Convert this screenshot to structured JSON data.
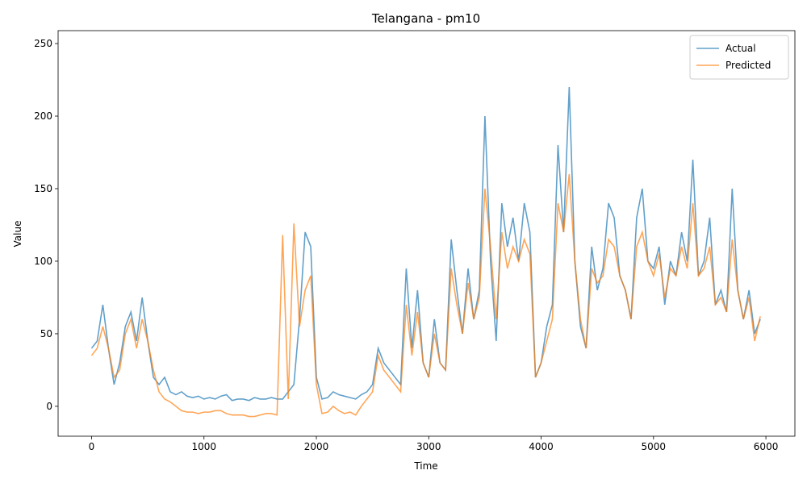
{
  "chart_data": {
    "type": "line",
    "title": "Telangana - pm10",
    "x_label": "Time",
    "y_label": "Value",
    "x": [
      0,
      50,
      100,
      150,
      200,
      250,
      300,
      350,
      400,
      450,
      500,
      550,
      600,
      650,
      700,
      750,
      800,
      850,
      900,
      950,
      1000,
      1050,
      1100,
      1150,
      1200,
      1250,
      1300,
      1350,
      1400,
      1450,
      1500,
      1550,
      1600,
      1650,
      1700,
      1750,
      1800,
      1850,
      1900,
      1950,
      2000,
      2050,
      2100,
      2150,
      2200,
      2250,
      2300,
      2350,
      2400,
      2450,
      2500,
      2550,
      2600,
      2650,
      2700,
      2750,
      2800,
      2850,
      2900,
      2950,
      3000,
      3050,
      3100,
      3150,
      3200,
      3250,
      3300,
      3350,
      3400,
      3450,
      3500,
      3550,
      3600,
      3650,
      3700,
      3750,
      3800,
      3850,
      3900,
      3950,
      4000,
      4050,
      4100,
      4150,
      4200,
      4250,
      4300,
      4350,
      4400,
      4450,
      4500,
      4550,
      4600,
      4650,
      4700,
      4750,
      4800,
      4850,
      4900,
      4950,
      5000,
      5050,
      5100,
      5150,
      5200,
      5250,
      5300,
      5350,
      5400,
      5450,
      5500,
      5550,
      5600,
      5650,
      5700,
      5750,
      5800,
      5850,
      5900,
      5950
    ],
    "series": [
      {
        "name": "Actual",
        "color": "#1f77b4",
        "values": [
          40,
          45,
          70,
          40,
          15,
          30,
          55,
          65,
          45,
          75,
          45,
          20,
          15,
          20,
          10,
          8,
          10,
          7,
          6,
          7,
          5,
          6,
          5,
          7,
          8,
          4,
          5,
          5,
          4,
          6,
          5,
          5,
          6,
          5,
          5,
          10,
          15,
          60,
          120,
          110,
          20,
          5,
          6,
          10,
          8,
          7,
          6,
          5,
          8,
          10,
          15,
          40,
          30,
          25,
          20,
          15,
          95,
          40,
          80,
          30,
          20,
          60,
          30,
          25,
          115,
          80,
          50,
          95,
          60,
          80,
          200,
          100,
          45,
          140,
          110,
          130,
          100,
          140,
          120,
          20,
          30,
          55,
          70,
          180,
          120,
          220,
          100,
          55,
          40,
          110,
          80,
          95,
          140,
          130,
          90,
          80,
          60,
          130,
          150,
          100,
          95,
          110,
          70,
          100,
          90,
          120,
          100,
          170,
          90,
          100,
          130,
          70,
          80,
          65,
          150,
          80,
          60,
          80,
          50,
          60
        ]
      },
      {
        "name": "Predicted",
        "color": "#ff7f0e",
        "values": [
          35,
          40,
          55,
          40,
          20,
          25,
          50,
          60,
          40,
          60,
          45,
          25,
          10,
          5,
          3,
          0,
          -3,
          -4,
          -4,
          -5,
          -4,
          -4,
          -3,
          -3,
          -5,
          -6,
          -6,
          -6,
          -7,
          -7,
          -6,
          -5,
          -5,
          -6,
          118,
          5,
          126,
          55,
          80,
          90,
          15,
          -5,
          -4,
          0,
          -3,
          -5,
          -4,
          -6,
          0,
          5,
          10,
          35,
          25,
          20,
          15,
          10,
          70,
          35,
          65,
          30,
          20,
          50,
          30,
          25,
          95,
          70,
          50,
          85,
          60,
          75,
          150,
          110,
          60,
          120,
          95,
          110,
          100,
          115,
          105,
          20,
          30,
          45,
          60,
          140,
          120,
          160,
          100,
          60,
          40,
          95,
          85,
          90,
          115,
          110,
          90,
          80,
          60,
          110,
          120,
          100,
          90,
          105,
          75,
          95,
          90,
          110,
          95,
          140,
          90,
          95,
          110,
          70,
          75,
          65,
          115,
          80,
          60,
          75,
          45,
          62
        ]
      }
    ],
    "xlim": [
      -298,
      6258
    ],
    "ylim": [
      -20.6,
      258.9
    ],
    "xticks": [
      0,
      1000,
      2000,
      3000,
      4000,
      5000,
      6000
    ],
    "yticks": [
      0,
      50,
      100,
      150,
      200,
      250
    ],
    "legend": "upper right"
  }
}
